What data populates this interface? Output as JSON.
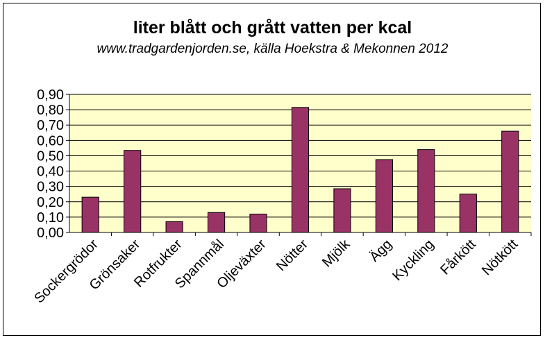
{
  "chart_data": {
    "type": "bar",
    "title": "liter blått och grått vatten per kcal",
    "subtitle": "www.tradgardenjorden.se, källa Hoekstra & Mekonnen 2012",
    "xlabel": "",
    "ylabel": "",
    "ylim": [
      0,
      0.9
    ],
    "yticks": [
      "0,00",
      "0,10",
      "0,20",
      "0,30",
      "0,40",
      "0,50",
      "0,60",
      "0,70",
      "0,80",
      "0,90"
    ],
    "grid": true,
    "legend": "none",
    "categories": [
      "Sockergrödor",
      "Grönsaker",
      "Rotfrukter",
      "Spannmål",
      "Oljeväxter",
      "Nötter",
      "Mjölk",
      "Ägg",
      "Kyckling",
      "Fårkött",
      "Nötkött"
    ],
    "values": [
      0.23,
      0.535,
      0.07,
      0.13,
      0.12,
      0.815,
      0.285,
      0.475,
      0.54,
      0.25,
      0.66
    ],
    "colors": {
      "bar": "#993366",
      "plot_bg": "#FFFFCC",
      "axis": "#000000"
    }
  }
}
